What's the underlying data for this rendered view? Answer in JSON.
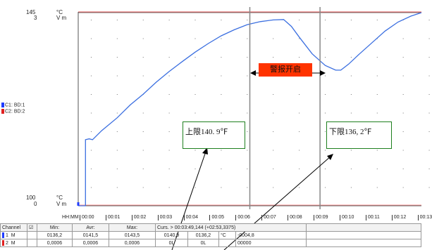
{
  "left_axis": {
    "top_value_1": "145",
    "top_value_2": "3",
    "top_unit_1": "°C",
    "top_unit_2": "V m",
    "bottom_value_1": "100",
    "bottom_value_2": "0",
    "bottom_unit_1": "°C",
    "bottom_unit_2": "V m"
  },
  "channels_legend": [
    {
      "label": "C1: BD:1",
      "color": "#1f3cff"
    },
    {
      "label": "C2: BD:2",
      "color": "#e02020"
    }
  ],
  "alarm_label": "警报开启",
  "upper_limit_label": "上限140. 9℉",
  "lower_limit_label": "下限136, 2℉",
  "timeline": {
    "header": "HH:MM",
    "ticks": [
      "00:00",
      "00:01",
      "00:02",
      "00:03",
      "00:04",
      "00:05",
      "00:06",
      "00:07",
      "00:08",
      "00:09",
      "00:10",
      "00:11",
      "00:12",
      "00:13"
    ]
  },
  "stats": {
    "header": {
      "channel": "Channel",
      "check": "☑",
      "min": "Min:",
      "avr": "Avr:",
      "max": "Max:",
      "cursor": "Curs. > 00:03:49,144 (+02:53,3375)"
    },
    "rows": [
      {
        "num": "1",
        "mode": "M",
        "min": "0136,2",
        "avr": "0141,5",
        "max": "0143,5",
        "cur": "0140,9",
        "cur2": "0136,2",
        "unit": "°C",
        "diff": "-0004,8",
        "color": "#1f3cff"
      },
      {
        "num": "2",
        "mode": "M",
        "min": "0,0006",
        "avr": "0,0006",
        "max": "0,0006",
        "cur": "0L",
        "cur2": "0L",
        "unit": "",
        "diff": "00000",
        "color": "#e02020"
      }
    ]
  },
  "chart_data": {
    "type": "line",
    "xlabel": "HH:MM",
    "x_unit": "minutes",
    "xlim": [
      0,
      13.2
    ],
    "ylim": [
      100,
      145
    ],
    "y_unit": "°C",
    "series": [
      {
        "name": "C1: BD:1",
        "color": "#3b6fe0",
        "x": [
          0.0,
          0.28,
          0.28,
          0.42,
          0.55,
          0.9,
          1.5,
          2.0,
          2.5,
          3.0,
          3.5,
          4.0,
          4.5,
          5.0,
          5.5,
          6.0,
          6.5,
          7.0,
          7.5,
          7.9,
          8.2,
          8.5,
          9.0,
          9.5,
          9.9,
          10.1,
          10.4,
          10.8,
          11.3,
          11.8,
          12.3,
          12.8,
          13.2
        ],
        "y": [
          100,
          100,
          115.4,
          115.6,
          115.4,
          117.5,
          120.5,
          123.5,
          126,
          128.8,
          131.3,
          133.6,
          135.8,
          137.8,
          139.6,
          141,
          142.2,
          142.9,
          143.3,
          143.4,
          141.8,
          139.3,
          135.4,
          132.7,
          131.6,
          131.6,
          133,
          135.3,
          138,
          140.7,
          142.8,
          144.2,
          145
        ]
      }
    ],
    "cursor_lines": [
      {
        "x": 6.6,
        "label": ""
      },
      {
        "x": 9.3,
        "label": ""
      }
    ]
  }
}
